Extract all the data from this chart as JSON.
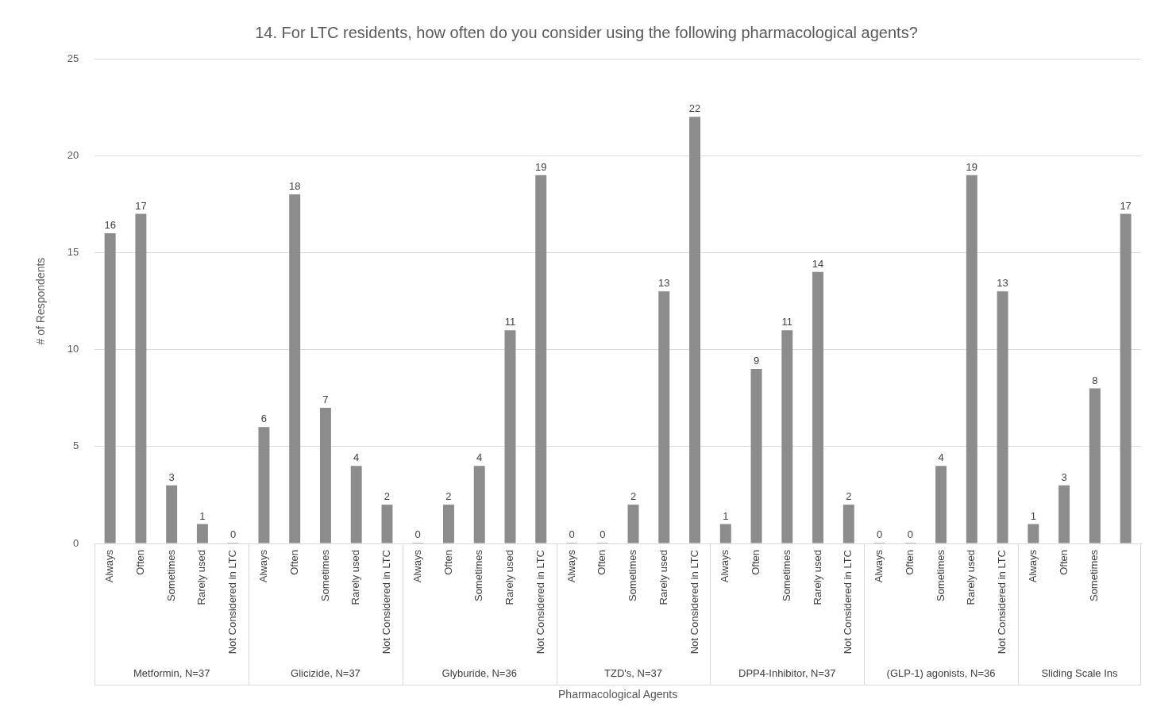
{
  "chart_data": {
    "type": "bar",
    "title": "14. For LTC residents, how often do you consider using the following pharmacological agents?",
    "xlabel": "Pharmacological Agents",
    "ylabel": "# of Respondents",
    "categories": [
      "Always",
      "Often",
      "Sometimes",
      "Rarely used",
      "Not Considered in LTC",
      "Always",
      "Often",
      "Sometimes",
      "Rarely used",
      "Not Considered in LTC",
      "Always",
      "Often",
      "Sometimes",
      "Rarely used",
      "Not Considered in LTC",
      "Always",
      "Often",
      "Sometimes",
      "Rarely used",
      "Not Considered in LTC",
      "Always",
      "Often",
      "Sometimes",
      "Rarely used",
      "Not Considered in LTC",
      "Always",
      "Often",
      "Sometimes",
      "Rarely used",
      "Not Considered in LTC",
      "Always",
      "Often",
      "Sometimes",
      null
    ],
    "values": [
      16,
      17,
      3,
      1,
      0,
      6,
      18,
      7,
      4,
      2,
      0,
      2,
      4,
      11,
      19,
      0,
      0,
      2,
      13,
      22,
      1,
      9,
      11,
      14,
      2,
      0,
      0,
      4,
      19,
      13,
      1,
      3,
      8,
      17
    ],
    "color": "#8c8c8c",
    "annotations": [
      "Metformin, N=37",
      "Glicizide, N=37",
      "Glyburide, N=36",
      "TZD's, N=37",
      "DPP4-Inhibitor, N=37",
      "(GLP-1) agonists, N=36",
      "Sliding Scale Ins"
    ],
    "ylim": [
      0,
      25
    ],
    "yticks": [
      0,
      5,
      10,
      15,
      20,
      25
    ],
    "grid": "y",
    "legend": false,
    "data_labels": true
  }
}
